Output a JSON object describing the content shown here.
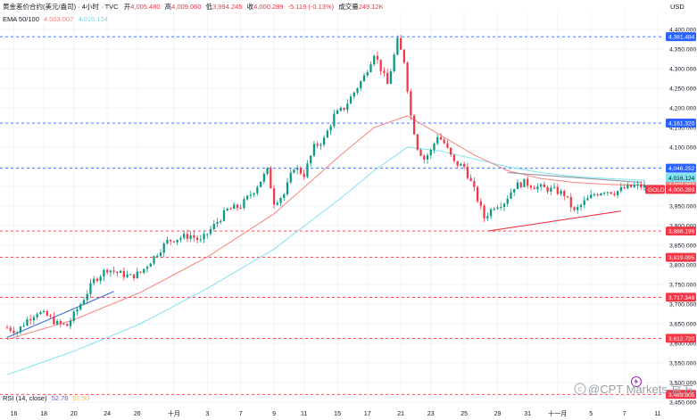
{
  "header": {
    "symbol": "黄金差价合约(美元/盎司) · 4小时 · TVC",
    "open_label": "开",
    "open": "4,005.480",
    "high_label": "高",
    "high": "4,009.060",
    "low_label": "低",
    "low": "3,994.245",
    "close_label": "收",
    "close": "4,000.289",
    "change": "-5.119 (-0.13%)",
    "volume_label": "成交量",
    "volume": "249.12K",
    "ema_label": "EMA 50/100",
    "ema50": "4,003.007",
    "ema100": "4,016.124"
  },
  "rsi_label": "RSI (14, close)",
  "rsi_value1": "52.78",
  "rsi_value2": "51.90",
  "currency": "USD",
  "watermark": "@CPT Markets 官方",
  "price_tag": {
    "label": "GOLD",
    "value": "4,000.289"
  },
  "colors": {
    "up": "#089981",
    "down": "#f23645",
    "ema50": "#f7837a",
    "ema100": "#7fe3f0",
    "trend_blue": "#3a6fd8",
    "trend_red": "#f23645",
    "res_blue": "#2962ff",
    "sup_red": "#f23645"
  },
  "chart_data": {
    "type": "candlestick",
    "x_tick_labels": [
      "16",
      "18",
      "20",
      "24",
      "26",
      "十月",
      "3",
      "7",
      "9",
      "11",
      "15",
      "17",
      "21",
      "23",
      "25",
      "29",
      "31",
      "十一月",
      "5",
      "7",
      "11"
    ],
    "x_tick_candle_index": [
      2,
      11,
      20,
      30,
      39,
      50,
      60,
      70,
      80,
      89,
      99,
      108,
      118,
      127,
      137,
      147,
      156,
      165,
      175,
      185,
      195
    ],
    "ylim": [
      3450,
      4400
    ],
    "y_ticks": [
      3450,
      3500,
      3550,
      3600,
      3650,
      3700,
      3750,
      3800,
      3850,
      3900,
      3950,
      4000,
      4050,
      4100,
      4150,
      4200,
      4250,
      4300,
      4350,
      4400
    ],
    "levels": [
      {
        "value": 4381.484,
        "label": "4,381.484",
        "style": "blue"
      },
      {
        "value": 4161.32,
        "label": "4,161.320",
        "style": "blue"
      },
      {
        "value": 4046.252,
        "label": "4,046.252",
        "style": "blue"
      },
      {
        "value": 3886.199,
        "label": "3,886.199",
        "style": "red"
      },
      {
        "value": 3819.095,
        "label": "3,819.095",
        "style": "red"
      },
      {
        "value": 3717.348,
        "label": "3,717.348",
        "style": "red"
      },
      {
        "value": 3612.72,
        "label": "3,612.720",
        "style": "red"
      },
      {
        "value": 3469.805,
        "label": "3,469.805",
        "style": "red"
      }
    ],
    "ema_tags": [
      {
        "value": 4003.007,
        "label": "4,003.007",
        "series": "ema50"
      },
      {
        "value": 4016.124,
        "label": "4,016.124",
        "series": "ema100"
      }
    ],
    "close_keypoints": [
      [
        0,
        3640
      ],
      [
        3,
        3630
      ],
      [
        6,
        3660
      ],
      [
        9,
        3680
      ],
      [
        12,
        3670
      ],
      [
        15,
        3650
      ],
      [
        18,
        3645
      ],
      [
        22,
        3700
      ],
      [
        26,
        3760
      ],
      [
        30,
        3790
      ],
      [
        33,
        3780
      ],
      [
        37,
        3770
      ],
      [
        40,
        3780
      ],
      [
        44,
        3820
      ],
      [
        48,
        3860
      ],
      [
        52,
        3870
      ],
      [
        55,
        3875
      ],
      [
        58,
        3860
      ],
      [
        62,
        3900
      ],
      [
        66,
        3940
      ],
      [
        70,
        3950
      ],
      [
        74,
        3990
      ],
      [
        78,
        4040
      ],
      [
        80,
        3960
      ],
      [
        83,
        3980
      ],
      [
        86,
        4050
      ],
      [
        89,
        4030
      ],
      [
        92,
        4100
      ],
      [
        95,
        4120
      ],
      [
        98,
        4180
      ],
      [
        101,
        4200
      ],
      [
        104,
        4240
      ],
      [
        107,
        4280
      ],
      [
        110,
        4340
      ],
      [
        112,
        4300
      ],
      [
        114,
        4260
      ],
      [
        117,
        4370
      ],
      [
        119,
        4320
      ],
      [
        121,
        4180
      ],
      [
        123,
        4100
      ],
      [
        125,
        4070
      ],
      [
        127,
        4090
      ],
      [
        129,
        4130
      ],
      [
        131,
        4110
      ],
      [
        134,
        4060
      ],
      [
        137,
        4050
      ],
      [
        140,
        3990
      ],
      [
        143,
        3920
      ],
      [
        146,
        3950
      ],
      [
        149,
        3960
      ],
      [
        152,
        4000
      ],
      [
        155,
        4010
      ],
      [
        158,
        4000
      ],
      [
        161,
        3995
      ],
      [
        164,
        3990
      ],
      [
        167,
        3980
      ],
      [
        170,
        3935
      ],
      [
        173,
        3960
      ],
      [
        176,
        3980
      ],
      [
        179,
        3990
      ],
      [
        182,
        3985
      ],
      [
        185,
        3995
      ],
      [
        188,
        4000
      ],
      [
        190,
        4000
      ]
    ],
    "ema50_keypoints": [
      [
        0,
        3610
      ],
      [
        20,
        3660
      ],
      [
        40,
        3730
      ],
      [
        60,
        3820
      ],
      [
        80,
        3930
      ],
      [
        100,
        4080
      ],
      [
        110,
        4150
      ],
      [
        120,
        4180
      ],
      [
        130,
        4130
      ],
      [
        140,
        4080
      ],
      [
        150,
        4040
      ],
      [
        160,
        4020
      ],
      [
        170,
        4010
      ],
      [
        180,
        4005
      ],
      [
        190,
        4003
      ]
    ],
    "ema100_keypoints": [
      [
        0,
        3520
      ],
      [
        20,
        3580
      ],
      [
        40,
        3650
      ],
      [
        60,
        3740
      ],
      [
        80,
        3840
      ],
      [
        100,
        3970
      ],
      [
        110,
        4040
      ],
      [
        120,
        4100
      ],
      [
        130,
        4090
      ],
      [
        140,
        4070
      ],
      [
        150,
        4050
      ],
      [
        160,
        4035
      ],
      [
        170,
        4025
      ],
      [
        180,
        4020
      ],
      [
        190,
        4016
      ]
    ],
    "trendlines": [
      {
        "color": "trend_blue",
        "points": [
          [
            0,
            3615
          ],
          [
            32,
            3732
          ]
        ]
      },
      {
        "color": "trend_red",
        "points": [
          [
            144,
            3886
          ],
          [
            184,
            3937
          ]
        ]
      },
      {
        "color": "trend_gray",
        "points": [
          [
            150,
            4035
          ],
          [
            190,
            4010
          ]
        ]
      }
    ]
  }
}
